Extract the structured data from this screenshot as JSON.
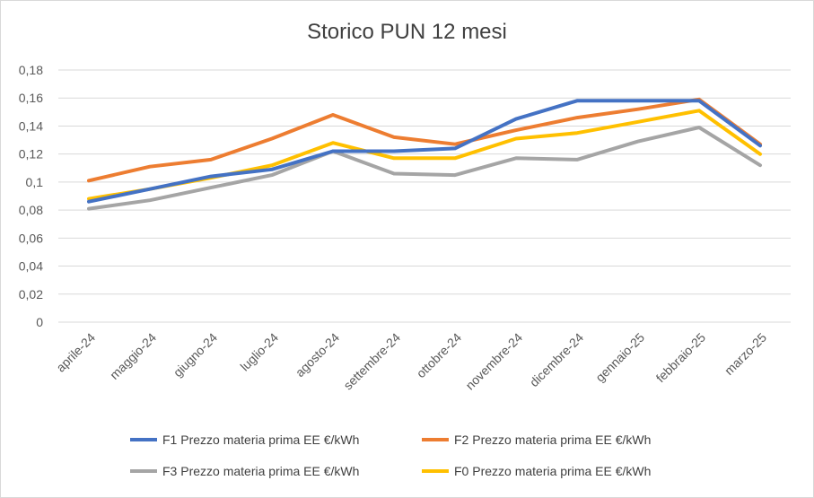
{
  "chart_data": {
    "type": "line",
    "title": "Storico PUN 12 mesi",
    "xlabel": "",
    "ylabel": "",
    "categories": [
      "aprile-24",
      "maggio-24",
      "giugno-24",
      "luglio-24",
      "agosto-24",
      "settembre-24",
      "ottobre-24",
      "novembre-24",
      "dicembre-24",
      "gennaio-25",
      "febbraio-25",
      "marzo-25"
    ],
    "ylim": [
      0,
      0.18
    ],
    "yticks": [
      "0",
      "0,02",
      "0,04",
      "0,06",
      "0,08",
      "0,1",
      "0,12",
      "0,14",
      "0,16",
      "0,18"
    ],
    "grid": true,
    "legend_position": "bottom",
    "series": [
      {
        "name": "F1 Prezzo materia prima EE €/kWh",
        "color": "#4472C4",
        "values": [
          0.086,
          0.095,
          0.104,
          0.109,
          0.122,
          0.122,
          0.124,
          0.145,
          0.158,
          0.158,
          0.158,
          0.126
        ]
      },
      {
        "name": "F2 Prezzo materia prima EE €/kWh",
        "color": "#ED7D31",
        "values": [
          0.101,
          0.111,
          0.116,
          0.131,
          0.148,
          0.132,
          0.127,
          0.137,
          0.146,
          0.152,
          0.159,
          0.127
        ]
      },
      {
        "name": "F3 Prezzo materia prima EE €/kWh",
        "color": "#A5A5A5",
        "values": [
          0.081,
          0.087,
          0.096,
          0.105,
          0.122,
          0.106,
          0.105,
          0.117,
          0.116,
          0.129,
          0.139,
          0.112
        ]
      },
      {
        "name": "F0 Prezzo materia prima EE €/kWh",
        "color": "#FFC000",
        "values": [
          0.088,
          0.095,
          0.103,
          0.112,
          0.128,
          0.117,
          0.117,
          0.131,
          0.135,
          0.143,
          0.151,
          0.12
        ]
      }
    ]
  }
}
